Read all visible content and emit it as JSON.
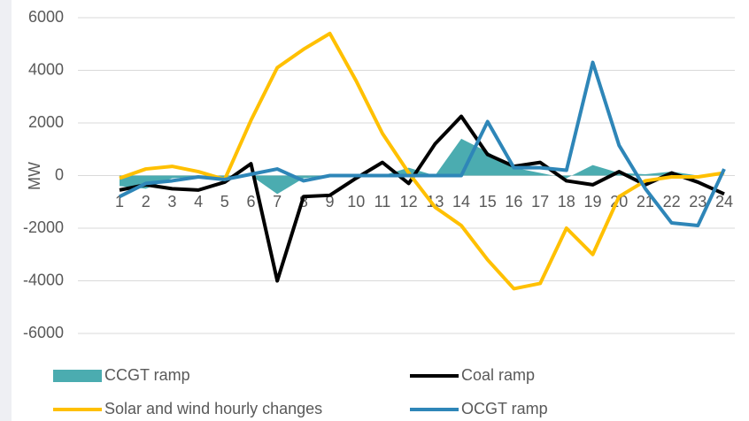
{
  "chart_data": {
    "type": "line",
    "ylabel": "MW",
    "categories": [
      "1",
      "2",
      "3",
      "4",
      "5",
      "6",
      "7",
      "8",
      "9",
      "10",
      "11",
      "12",
      "13",
      "14",
      "15",
      "16",
      "17",
      "18",
      "19",
      "20",
      "21",
      "22",
      "23",
      "24"
    ],
    "ylim": [
      -6000,
      6000
    ],
    "yticks": [
      -6000,
      -4000,
      -2000,
      0,
      2000,
      4000,
      6000
    ],
    "grid": true,
    "series": [
      {
        "name": "CCGT ramp",
        "color": "#4bacb0",
        "style": "area",
        "values": [
          -400,
          -500,
          -100,
          -50,
          -100,
          0,
          -700,
          -100,
          0,
          0,
          0,
          300,
          0,
          1400,
          900,
          300,
          100,
          -100,
          400,
          100,
          50,
          150,
          0,
          0
        ]
      },
      {
        "name": "Coal ramp",
        "color": "#000000",
        "style": "line",
        "values": [
          -550,
          -350,
          -500,
          -550,
          -250,
          450,
          -4000,
          -800,
          -750,
          -100,
          500,
          -300,
          1200,
          2250,
          800,
          350,
          500,
          -200,
          -350,
          150,
          -350,
          100,
          -250,
          -700
        ]
      },
      {
        "name": "Solar and wind hourly changes",
        "color": "#ffc000",
        "style": "line",
        "values": [
          -100,
          250,
          350,
          150,
          -150,
          2100,
          4100,
          4800,
          5400,
          3600,
          1600,
          100,
          -1200,
          -1900,
          -3200,
          -4300,
          -4100,
          -2000,
          -3000,
          -800,
          -200,
          -50,
          -50,
          100
        ]
      },
      {
        "name": "OCGT ramp",
        "color": "#2e86b8",
        "style": "line",
        "values": [
          -800,
          -300,
          -200,
          -50,
          -150,
          50,
          250,
          -200,
          0,
          0,
          0,
          0,
          0,
          0,
          2050,
          300,
          300,
          200,
          4300,
          1150,
          -500,
          -1800,
          -1900,
          250
        ]
      }
    ]
  }
}
